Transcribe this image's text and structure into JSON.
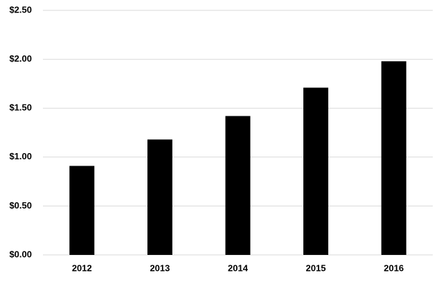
{
  "chart_data": {
    "type": "bar",
    "categories": [
      "2012",
      "2013",
      "2014",
      "2015",
      "2016"
    ],
    "values": [
      0.91,
      1.18,
      1.42,
      1.71,
      1.98
    ],
    "color": "#000000",
    "ylim": [
      0,
      2.5
    ],
    "yticks": [
      {
        "value": 0,
        "label": "$0.00"
      },
      {
        "value": 0.5,
        "label": "$0.50"
      },
      {
        "value": 1,
        "label": "$1.00"
      },
      {
        "value": 1.5,
        "label": "$1.50"
      },
      {
        "value": 2,
        "label": "$2.00"
      },
      {
        "value": 2.5,
        "label": "$2.50"
      }
    ],
    "grid": true
  }
}
